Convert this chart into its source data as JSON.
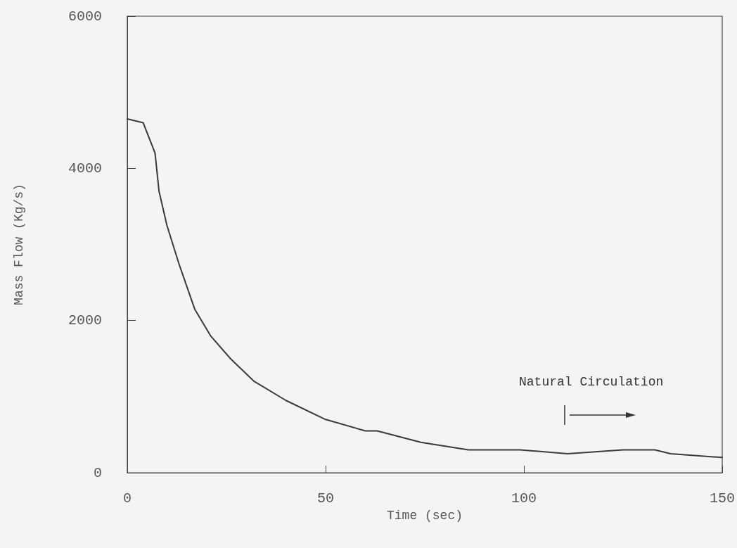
{
  "chart_data": {
    "type": "line",
    "xlabel": "Time (sec)",
    "ylabel": "Mass Flow (Kg/s)",
    "xlim": [
      0,
      150
    ],
    "xticks": [
      0,
      50,
      100,
      150
    ],
    "ylim": [
      0,
      6000
    ],
    "yticks": [
      0,
      2000,
      4000,
      6000
    ],
    "grid": false,
    "marker": "none",
    "line_style": "solid",
    "series": [
      {
        "color": "#3a3a3a",
        "x": [
          0,
          4,
          7,
          8,
          10,
          13,
          17,
          21,
          26,
          32,
          40,
          50,
          60,
          63,
          74,
          86,
          99,
          111,
          125,
          133,
          137,
          150
        ],
        "values": [
          4650,
          4600,
          4200,
          3700,
          3250,
          2750,
          2150,
          1800,
          1500,
          1200,
          950,
          700,
          550,
          550,
          400,
          300,
          300,
          250,
          300,
          300,
          250,
          200
        ]
      }
    ],
    "annotations": [
      "Natural Circulation"
    ]
  }
}
